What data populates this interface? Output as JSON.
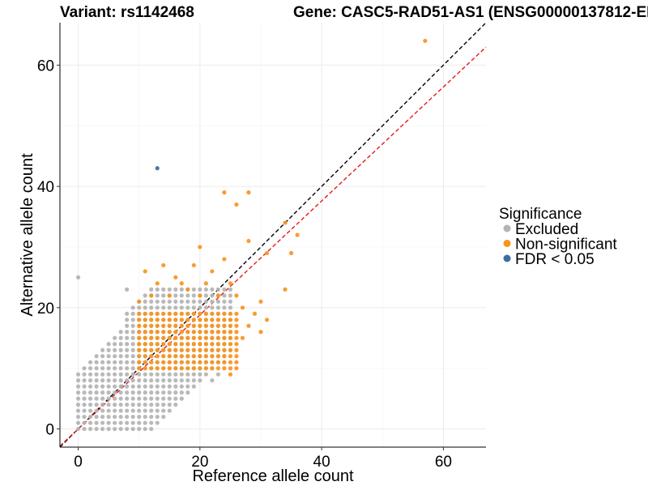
{
  "chart_data": {
    "type": "scatter",
    "title_left": "Variant: rs1142468",
    "title_right": "Gene: CASC5-RAD51-AS1 (ENSG00000137812-EN",
    "xlabel": "Reference allele count",
    "ylabel": "Alternative allele count",
    "xlim": [
      -3,
      67
    ],
    "ylim": [
      -3,
      67
    ],
    "x_ticks": [
      0,
      20,
      40,
      60
    ],
    "y_ticks": [
      0,
      20,
      40,
      60
    ],
    "grid": true,
    "legend": {
      "title": "Significance",
      "position": "right",
      "items": [
        {
          "label": "Excluded",
          "color": "#b3b3b3"
        },
        {
          "label": "Non-significant",
          "color": "#f7941d"
        },
        {
          "label": "FDR < 0.05",
          "color": "#3d6e9e"
        }
      ]
    },
    "reference_lines": [
      {
        "name": "identity",
        "slope": 1,
        "intercept": 0,
        "color": "#000000",
        "dash": true
      },
      {
        "name": "fit",
        "slope": 0.94,
        "intercept": 0,
        "color": "#e41a1c",
        "dash": true
      }
    ],
    "series": [
      {
        "name": "Excluded",
        "color": "#b3b3b3",
        "grid_fill": {
          "x_range": [
            0,
            25
          ],
          "y_range": [
            0,
            23
          ]
        },
        "points": [
          [
            0,
            25
          ],
          [
            0,
            5
          ],
          [
            0,
            3
          ],
          [
            1,
            1
          ],
          [
            1,
            2
          ],
          [
            1,
            4
          ],
          [
            2,
            3
          ],
          [
            2,
            2
          ],
          [
            2,
            6
          ],
          [
            2,
            8
          ],
          [
            3,
            1
          ],
          [
            3,
            0
          ],
          [
            3,
            5
          ],
          [
            3,
            9
          ],
          [
            4,
            2
          ],
          [
            4,
            10
          ],
          [
            4,
            12
          ],
          [
            5,
            1
          ],
          [
            5,
            13
          ],
          [
            6,
            0
          ],
          [
            6,
            14
          ],
          [
            7,
            16
          ],
          [
            7,
            3
          ],
          [
            8,
            2
          ],
          [
            8,
            17
          ],
          [
            8,
            23
          ],
          [
            9,
            20
          ],
          [
            9,
            1
          ],
          [
            10,
            18
          ],
          [
            10,
            0
          ],
          [
            11,
            1
          ],
          [
            12,
            2
          ],
          [
            12,
            21
          ],
          [
            13,
            3
          ],
          [
            14,
            4
          ],
          [
            15,
            5
          ],
          [
            15,
            3
          ],
          [
            16,
            6
          ],
          [
            17,
            5
          ],
          [
            17,
            8
          ],
          [
            18,
            7
          ],
          [
            19,
            9
          ],
          [
            20,
            8
          ],
          [
            21,
            9
          ],
          [
            22,
            10
          ],
          [
            22,
            8
          ],
          [
            23,
            9
          ],
          [
            24,
            11
          ],
          [
            25,
            13
          ]
        ]
      },
      {
        "name": "Non-significant",
        "color": "#f7941d",
        "grid_fill": {
          "x_range": [
            10,
            26
          ],
          "y_range": [
            10,
            19
          ]
        },
        "points": [
          [
            10,
            21
          ],
          [
            11,
            26
          ],
          [
            12,
            22
          ],
          [
            13,
            24
          ],
          [
            14,
            27
          ],
          [
            15,
            22
          ],
          [
            16,
            25
          ],
          [
            17,
            24
          ],
          [
            18,
            23
          ],
          [
            19,
            27
          ],
          [
            20,
            22
          ],
          [
            21,
            24
          ],
          [
            22,
            26
          ],
          [
            23,
            22
          ],
          [
            24,
            28
          ],
          [
            25,
            24
          ],
          [
            26,
            22
          ],
          [
            20,
            30
          ],
          [
            24,
            39
          ],
          [
            26,
            37
          ],
          [
            28,
            39
          ],
          [
            28,
            31
          ],
          [
            30,
            21
          ],
          [
            31,
            18
          ],
          [
            31,
            29
          ],
          [
            34,
            23
          ],
          [
            34,
            34
          ],
          [
            35,
            29
          ],
          [
            36,
            32
          ],
          [
            57,
            64
          ],
          [
            27,
            20
          ],
          [
            29,
            19
          ],
          [
            25,
            9
          ],
          [
            27,
            15
          ],
          [
            24,
            12
          ],
          [
            28,
            17
          ],
          [
            30,
            16
          ]
        ]
      },
      {
        "name": "FDR < 0.05",
        "color": "#3d6e9e",
        "points": [
          [
            13,
            43
          ]
        ]
      }
    ]
  }
}
